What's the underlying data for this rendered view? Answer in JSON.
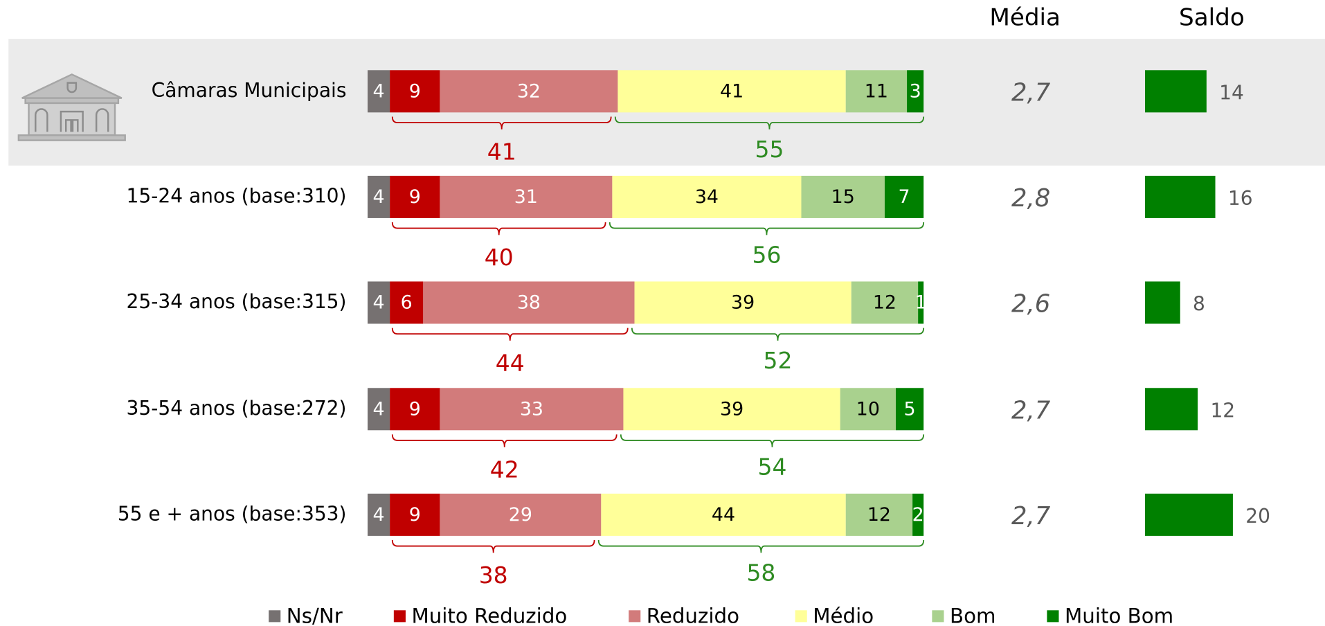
{
  "chart_data": {
    "type": "bar",
    "orientation": "horizontal",
    "stacked": true,
    "categories": [
      "Câmaras Municipais",
      "15-24 anos (base:310)",
      "25-34 anos (base:315)",
      "35-54 anos (base:272)",
      "55 e + anos (base:353)"
    ],
    "series": [
      {
        "name": "Ns/Nr",
        "color": "#767171",
        "label_color": "#ffffff",
        "values": [
          4,
          4,
          4,
          4,
          4
        ]
      },
      {
        "name": "Muito Reduzido",
        "color": "#c00000",
        "label_color": "#ffffff",
        "values": [
          9,
          9,
          6,
          9,
          9
        ]
      },
      {
        "name": "Reduzido",
        "color": "#d27b7b",
        "label_color": "#ffffff",
        "values": [
          32,
          31,
          38,
          33,
          29
        ]
      },
      {
        "name": "Médio",
        "color": "#ffff99",
        "label_color": "#000000",
        "values": [
          41,
          34,
          39,
          39,
          44
        ]
      },
      {
        "name": "Bom",
        "color": "#a9d18e",
        "label_color": "#000000",
        "values": [
          11,
          15,
          12,
          10,
          12
        ]
      },
      {
        "name": "Muito Bom",
        "color": "#008000",
        "label_color": "#ffffff",
        "values": [
          3,
          7,
          1,
          5,
          2
        ]
      }
    ],
    "negative_totals": {
      "color": "#c00000",
      "values": [
        41,
        40,
        44,
        42,
        38
      ]
    },
    "positive_totals": {
      "color": "#2e8b22",
      "values": [
        55,
        56,
        52,
        54,
        58
      ]
    },
    "media": {
      "title": "Média",
      "values": [
        2.7,
        2.8,
        2.6,
        2.7,
        2.7
      ],
      "value_labels": [
        "2,7",
        "2,8",
        "2,6",
        "2,7",
        "2,7"
      ]
    },
    "saldo": {
      "title": "Saldo",
      "color": "#008000",
      "values": [
        14,
        16,
        8,
        12,
        20
      ]
    },
    "xlim": [
      0,
      100
    ]
  }
}
